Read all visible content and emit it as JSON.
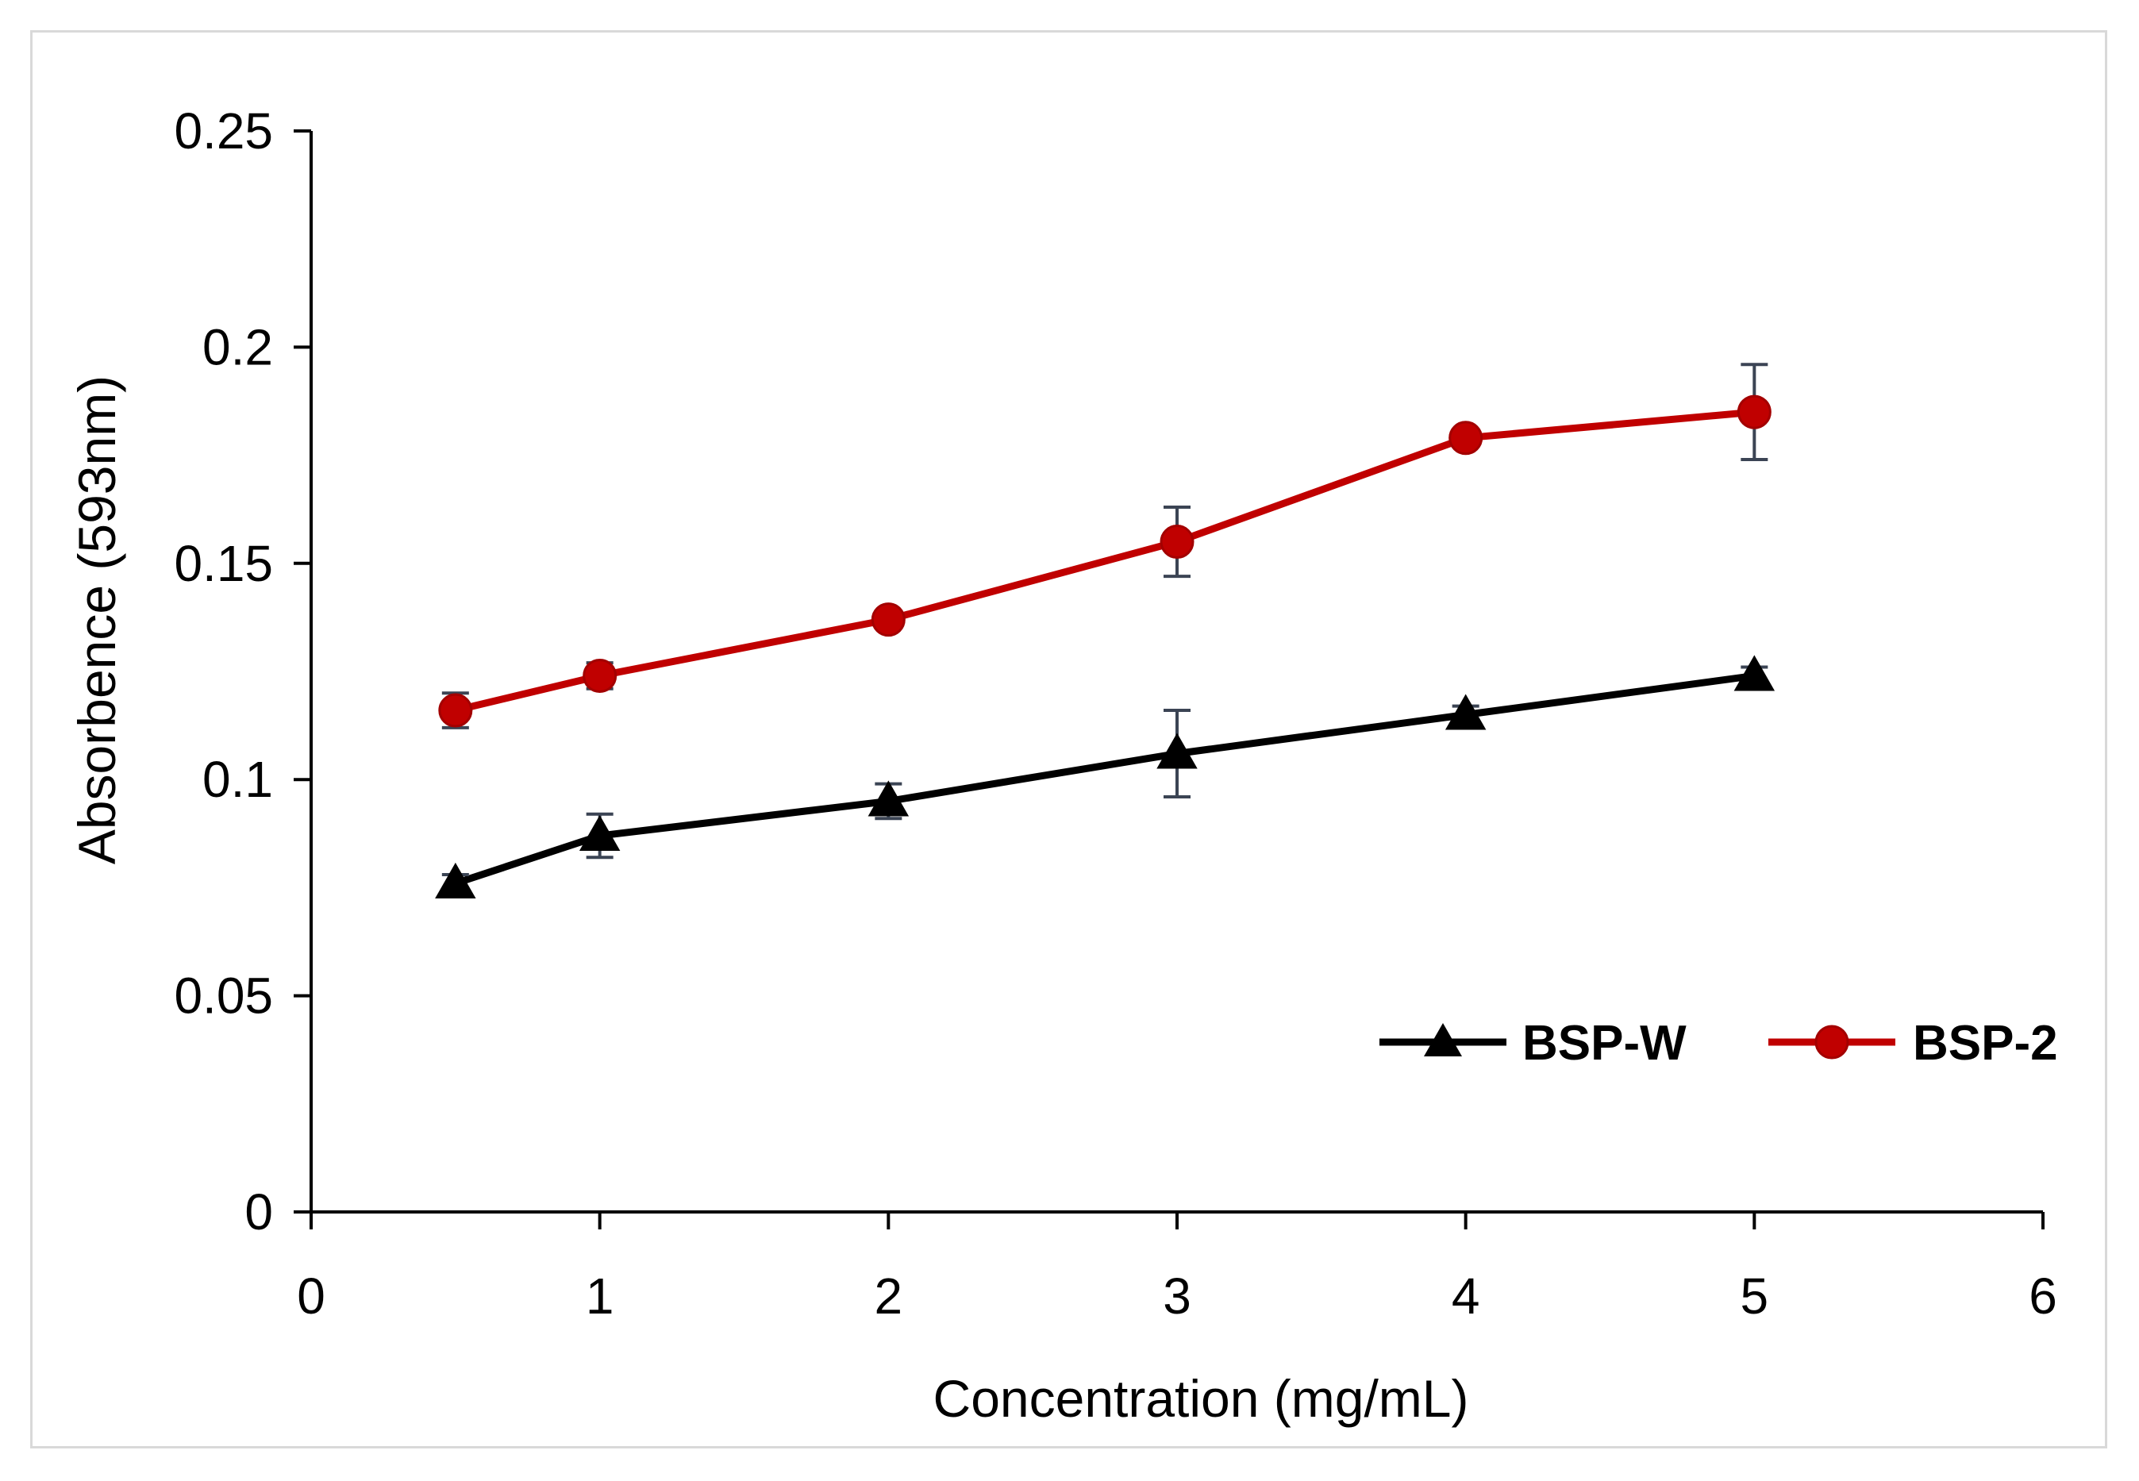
{
  "chart_data": {
    "type": "line",
    "title": "",
    "xlabel": "Concentration (mg/mL)",
    "ylabel": "Absorbence (593nm)",
    "xlim": [
      0,
      6
    ],
    "ylim": [
      0,
      0.25
    ],
    "xticks": [
      "0",
      "1",
      "2",
      "3",
      "4",
      "5",
      "6"
    ],
    "yticks": [
      "0",
      "0.05",
      "0.1",
      "0.15",
      "0.2",
      "0.25"
    ],
    "grid": false,
    "legend_position": "bottom-right",
    "series": [
      {
        "name": "BSP-W",
        "color": "#000000",
        "marker": "triangle",
        "x": [
          0.5,
          1,
          2,
          3,
          4,
          5
        ],
        "y": [
          0.076,
          0.087,
          0.095,
          0.106,
          0.115,
          0.124
        ],
        "error": [
          0.002,
          0.005,
          0.004,
          0.01,
          0.002,
          0.002
        ]
      },
      {
        "name": "BSP-2",
        "color": "#c00000",
        "marker": "circle",
        "x": [
          0.5,
          1,
          2,
          3,
          4,
          5
        ],
        "y": [
          0.116,
          0.124,
          0.137,
          0.155,
          0.179,
          0.185
        ],
        "error": [
          0.004,
          0.003,
          0.002,
          0.008,
          0.002,
          0.011
        ]
      }
    ],
    "errorbar_color": "#3b4454"
  }
}
